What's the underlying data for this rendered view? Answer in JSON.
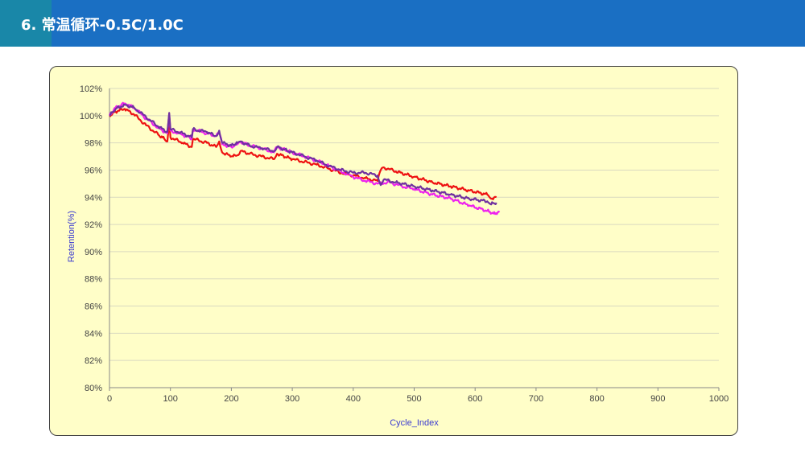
{
  "header": {
    "title": "6. 常温循环-0.5C/1.0C",
    "background": "#1a6fc3",
    "accent": "#1987a8"
  },
  "chart_data": {
    "type": "line",
    "title": "",
    "xlabel": "Cycle_Index",
    "ylabel": "Retention(%)",
    "xlim": [
      0,
      1000
    ],
    "ylim": [
      80,
      102
    ],
    "x_ticks": [
      "0",
      "100",
      "200",
      "300",
      "400",
      "500",
      "600",
      "700",
      "800",
      "900",
      "1000"
    ],
    "y_ticks": [
      "80%",
      "82%",
      "84%",
      "86%",
      "88%",
      "90%",
      "92%",
      "94%",
      "96%",
      "98%",
      "100%",
      "102%"
    ],
    "grid": true,
    "legend": "none",
    "background": "#fffec8",
    "series": [
      {
        "color": "#ee1111",
        "points": [
          [
            0,
            100.0
          ],
          [
            10,
            100.3
          ],
          [
            25,
            100.5
          ],
          [
            40,
            100.1
          ],
          [
            60,
            99.3
          ],
          [
            80,
            98.6
          ],
          [
            90,
            98.3
          ],
          [
            95,
            98.1
          ],
          [
            98,
            99.7
          ],
          [
            100,
            98.4
          ],
          [
            120,
            98.0
          ],
          [
            135,
            97.7
          ],
          [
            137,
            98.3
          ],
          [
            160,
            98.0
          ],
          [
            175,
            97.7
          ],
          [
            180,
            98.1
          ],
          [
            185,
            97.3
          ],
          [
            200,
            97.0
          ],
          [
            210,
            97.1
          ],
          [
            215,
            97.4
          ],
          [
            230,
            97.2
          ],
          [
            250,
            97.0
          ],
          [
            270,
            96.8
          ],
          [
            275,
            97.2
          ],
          [
            300,
            96.8
          ],
          [
            320,
            96.6
          ],
          [
            340,
            96.4
          ],
          [
            360,
            96.1
          ],
          [
            380,
            95.8
          ],
          [
            400,
            95.6
          ],
          [
            420,
            95.4
          ],
          [
            440,
            95.2
          ],
          [
            445,
            96.0
          ],
          [
            450,
            96.2
          ],
          [
            470,
            95.9
          ],
          [
            500,
            95.5
          ],
          [
            530,
            95.1
          ],
          [
            560,
            94.8
          ],
          [
            590,
            94.5
          ],
          [
            620,
            94.2
          ],
          [
            628,
            93.9
          ],
          [
            635,
            94.0
          ]
        ]
      },
      {
        "color": "#ee22ee",
        "points": [
          [
            0,
            100.0
          ],
          [
            10,
            100.6
          ],
          [
            25,
            100.9
          ],
          [
            40,
            100.6
          ],
          [
            60,
            99.8
          ],
          [
            80,
            99.1
          ],
          [
            95,
            98.7
          ],
          [
            98,
            100.1
          ],
          [
            100,
            98.9
          ],
          [
            120,
            98.6
          ],
          [
            135,
            98.3
          ],
          [
            137,
            99.0
          ],
          [
            160,
            98.7
          ],
          [
            175,
            98.5
          ],
          [
            180,
            98.7
          ],
          [
            185,
            97.9
          ],
          [
            200,
            97.7
          ],
          [
            210,
            97.9
          ],
          [
            215,
            98.1
          ],
          [
            230,
            97.8
          ],
          [
            250,
            97.6
          ],
          [
            270,
            97.3
          ],
          [
            275,
            97.7
          ],
          [
            300,
            97.3
          ],
          [
            320,
            97.0
          ],
          [
            340,
            96.7
          ],
          [
            360,
            96.3
          ],
          [
            380,
            95.9
          ],
          [
            400,
            95.5
          ],
          [
            420,
            95.2
          ],
          [
            440,
            95.0
          ],
          [
            460,
            95.1
          ],
          [
            480,
            94.8
          ],
          [
            500,
            94.6
          ],
          [
            530,
            94.2
          ],
          [
            560,
            93.9
          ],
          [
            590,
            93.4
          ],
          [
            620,
            93.0
          ],
          [
            630,
            92.8
          ],
          [
            640,
            92.9
          ]
        ]
      },
      {
        "color": "#7030a0",
        "points": [
          [
            0,
            100.0
          ],
          [
            10,
            100.5
          ],
          [
            25,
            100.8
          ],
          [
            40,
            100.6
          ],
          [
            60,
            99.9
          ],
          [
            80,
            99.2
          ],
          [
            95,
            98.8
          ],
          [
            98,
            100.2
          ],
          [
            100,
            99.0
          ],
          [
            120,
            98.7
          ],
          [
            135,
            98.4
          ],
          [
            137,
            99.0
          ],
          [
            160,
            98.8
          ],
          [
            175,
            98.5
          ],
          [
            180,
            98.9
          ],
          [
            185,
            98.0
          ],
          [
            200,
            97.8
          ],
          [
            210,
            98.0
          ],
          [
            215,
            98.1
          ],
          [
            230,
            97.8
          ],
          [
            250,
            97.6
          ],
          [
            270,
            97.4
          ],
          [
            275,
            97.7
          ],
          [
            300,
            97.3
          ],
          [
            320,
            97.0
          ],
          [
            340,
            96.7
          ],
          [
            360,
            96.3
          ],
          [
            380,
            96.0
          ],
          [
            400,
            95.8
          ],
          [
            420,
            95.8
          ],
          [
            440,
            95.6
          ],
          [
            445,
            94.9
          ],
          [
            450,
            95.3
          ],
          [
            470,
            95.1
          ],
          [
            500,
            94.8
          ],
          [
            530,
            94.5
          ],
          [
            560,
            94.2
          ],
          [
            590,
            93.9
          ],
          [
            620,
            93.7
          ],
          [
            625,
            93.5
          ],
          [
            635,
            93.6
          ]
        ]
      }
    ]
  }
}
